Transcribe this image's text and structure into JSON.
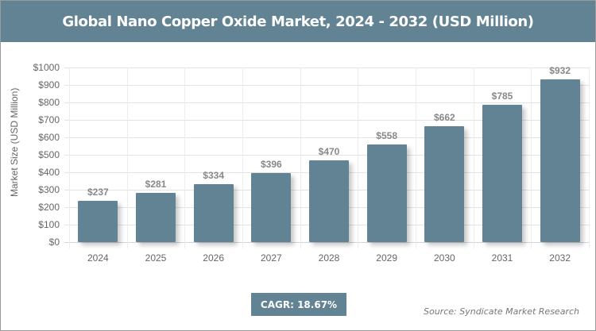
{
  "header": {
    "title": "Global Nano Copper Oxide Market, 2024 - 2032 (USD Million)"
  },
  "footer": {
    "cagr_label": "CAGR: 18.67%",
    "source": "Source: Syndicate Market Research"
  },
  "colors": {
    "bar": "#618393",
    "header": "#618393"
  },
  "chart_data": {
    "type": "bar",
    "title": "Global Nano Copper Oxide Market, 2024 - 2032 (USD Million)",
    "xlabel": "",
    "ylabel": "Market Size (USD Million)",
    "categories": [
      "2024",
      "2025",
      "2026",
      "2027",
      "2028",
      "2029",
      "2030",
      "2031",
      "2032"
    ],
    "values": [
      237,
      281,
      334,
      396,
      470,
      558,
      662,
      785,
      932
    ],
    "value_labels": [
      "$237",
      "$281",
      "$334",
      "$396",
      "$470",
      "$558",
      "$662",
      "$785",
      "$932"
    ],
    "ylim": [
      0,
      1000
    ],
    "yticks": [
      "$0",
      "$100",
      "$200",
      "$300",
      "$400",
      "$500",
      "$600",
      "$700",
      "$800",
      "$900",
      "$1000"
    ],
    "grid": true,
    "legend": null,
    "annotations": [
      "CAGR: 18.67%",
      "Source: Syndicate Market Research"
    ]
  }
}
